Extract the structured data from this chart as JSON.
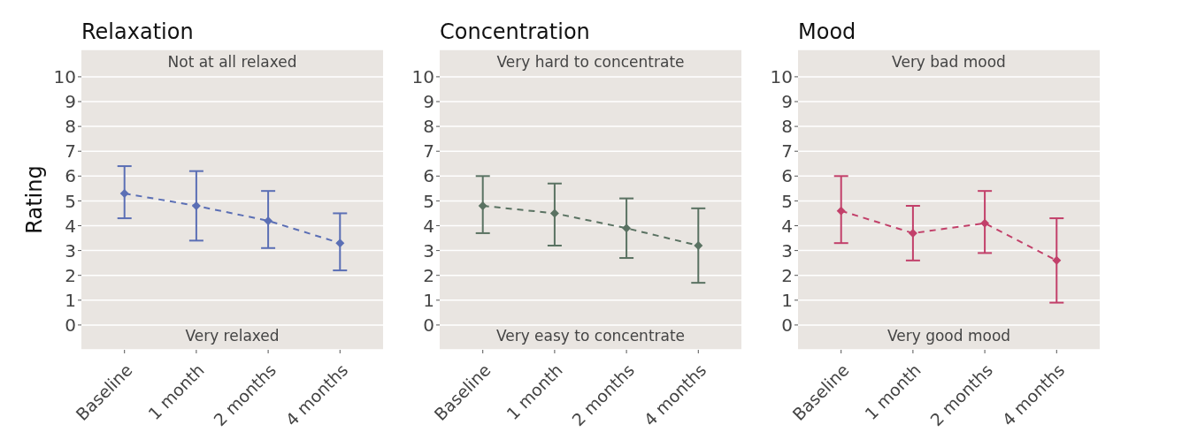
{
  "chart_data": [
    {
      "type": "line",
      "title": "Relaxation",
      "ylabel": "Rating",
      "categories": [
        "Baseline",
        "1 month",
        "2 months",
        "4 months"
      ],
      "series": [
        {
          "color": "#5b6fb5",
          "values": [
            5.3,
            4.8,
            4.2,
            3.3
          ],
          "errors": [
            [
              4.3,
              6.4
            ],
            [
              3.4,
              6.2
            ],
            [
              3.1,
              5.4
            ],
            [
              2.2,
              4.5
            ]
          ]
        }
      ],
      "annotations": [
        "Not at all relaxed",
        "Very relaxed"
      ],
      "ylim": [
        -1,
        11.1
      ],
      "yticks": [
        0,
        1,
        2,
        3,
        4,
        5,
        6,
        7,
        8,
        9,
        10
      ],
      "grid": "y",
      "marker": "diamond",
      "line_style": "dashed"
    },
    {
      "type": "line",
      "title": "Concentration",
      "categories": [
        "Baseline",
        "1 month",
        "2 months",
        "4 months"
      ],
      "series": [
        {
          "color": "#5a7262",
          "values": [
            4.8,
            4.5,
            3.9,
            3.2
          ],
          "errors": [
            [
              3.7,
              6.0
            ],
            [
              3.2,
              5.7
            ],
            [
              2.7,
              5.1
            ],
            [
              1.7,
              4.7
            ]
          ]
        }
      ],
      "annotations": [
        "Very hard to concentrate",
        "Very easy to concentrate"
      ],
      "ylim": [
        -1,
        11.1
      ],
      "yticks": [
        0,
        1,
        2,
        3,
        4,
        5,
        6,
        7,
        8,
        9,
        10
      ],
      "grid": "y",
      "marker": "diamond",
      "line_style": "dashed"
    },
    {
      "type": "line",
      "title": "Mood",
      "categories": [
        "Baseline",
        "1 month",
        "2 months",
        "4 months"
      ],
      "series": [
        {
          "color": "#c2406a",
          "values": [
            4.6,
            3.7,
            4.1,
            2.6
          ],
          "errors": [
            [
              3.3,
              6.0
            ],
            [
              2.6,
              4.8
            ],
            [
              2.9,
              5.4
            ],
            [
              0.9,
              4.3
            ]
          ]
        }
      ],
      "annotations": [
        "Very bad mood",
        "Very good mood"
      ],
      "ylim": [
        -1,
        11.1
      ],
      "yticks": [
        0,
        1,
        2,
        3,
        4,
        5,
        6,
        7,
        8,
        9,
        10
      ],
      "grid": "y",
      "marker": "diamond",
      "line_style": "dashed"
    }
  ]
}
